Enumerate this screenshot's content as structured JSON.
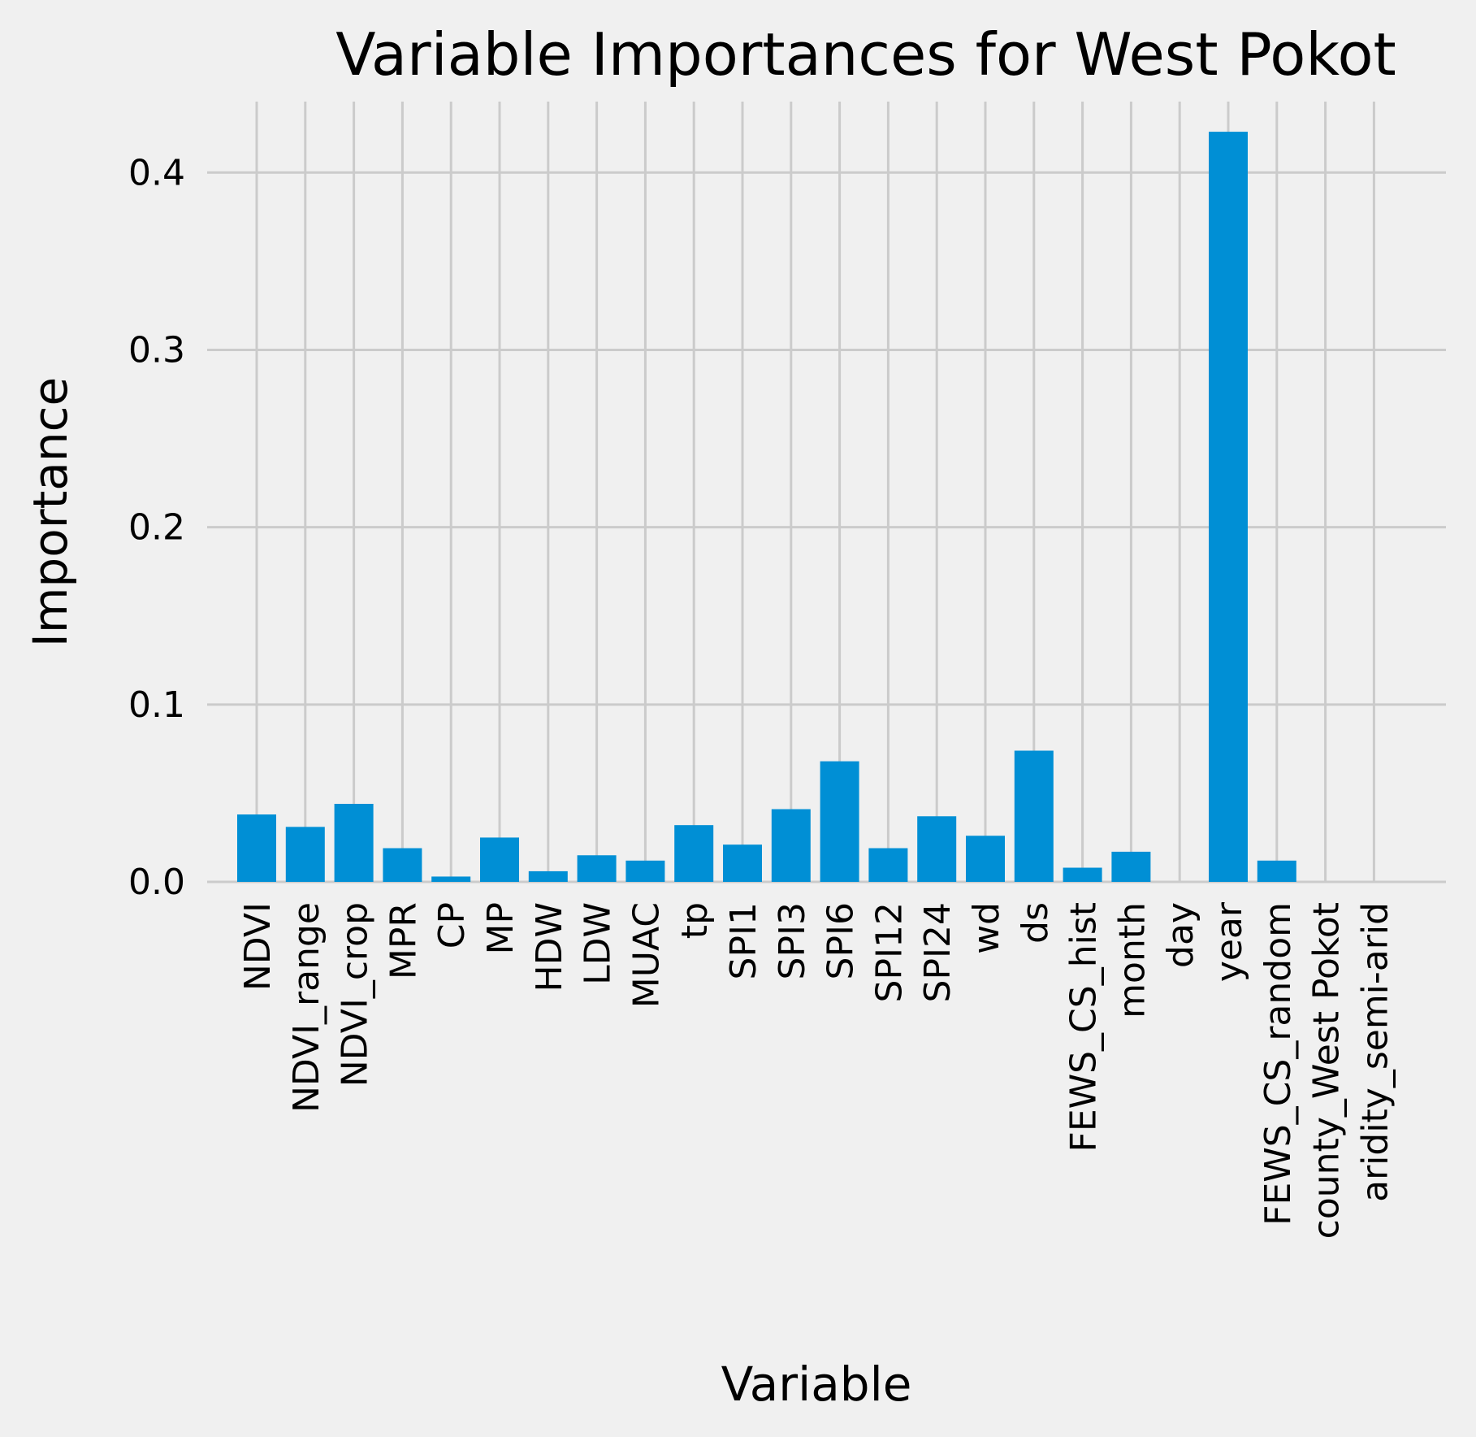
{
  "chart_data": {
    "type": "bar",
    "title": "Variable Importances for West Pokot",
    "xlabel": "Variable",
    "ylabel": "Importance",
    "ylim": [
      0,
      0.44
    ],
    "yticks": [
      "0.0",
      "0.1",
      "0.2",
      "0.3",
      "0.4"
    ],
    "grid": true,
    "bar_color": "#008fd5",
    "background": "#f0f0f0",
    "categories": [
      "NDVI",
      "NDVI_range",
      "NDVI_crop",
      "MPR",
      "CP",
      "MP",
      "HDW",
      "LDW",
      "MUAC",
      "tp",
      "SPI1",
      "SPI3",
      "SPI6",
      "SPI12",
      "SPI24",
      "wd",
      "ds",
      "FEWS_CS_hist",
      "month",
      "day",
      "year",
      "FEWS_CS_random",
      "county_West Pokot",
      "aridity_semi-arid"
    ],
    "values": [
      0.038,
      0.031,
      0.044,
      0.019,
      0.003,
      0.025,
      0.006,
      0.015,
      0.012,
      0.032,
      0.021,
      0.041,
      0.068,
      0.019,
      0.037,
      0.026,
      0.074,
      0.008,
      0.017,
      0.0,
      0.423,
      0.012,
      0.0,
      0.0
    ]
  }
}
